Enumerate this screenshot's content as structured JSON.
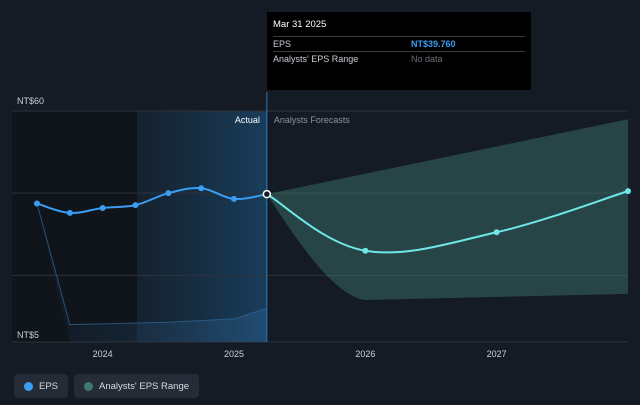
{
  "chart_data": {
    "type": "line",
    "y_axis": {
      "label_top": "NT$60",
      "label_bottom": "NT$5",
      "ylim": [
        5,
        60
      ]
    },
    "x_axis": {
      "ticks": [
        "2024",
        "2025",
        "2026",
        "2027"
      ],
      "tick_values": [
        2024.0,
        2025.0,
        2026.0,
        2027.0
      ],
      "xlim": [
        2023.25,
        2028.0
      ]
    },
    "sections": {
      "actual_label": "Actual",
      "forecast_label": "Analysts Forecasts",
      "split_x": 2025.25
    },
    "series": [
      {
        "name": "EPS",
        "color": "#3a9df2",
        "points": [
          {
            "x": 2023.5,
            "y": 37.5
          },
          {
            "x": 2023.75,
            "y": 35.2
          },
          {
            "x": 2024.0,
            "y": 36.4
          },
          {
            "x": 2024.25,
            "y": 37.1
          },
          {
            "x": 2024.5,
            "y": 40.0
          },
          {
            "x": 2024.75,
            "y": 41.2
          },
          {
            "x": 2025.0,
            "y": 38.6
          },
          {
            "x": 2025.25,
            "y": 39.76
          }
        ]
      },
      {
        "name": "EPS Forecast",
        "color": "#6ee7e7",
        "points": [
          {
            "x": 2025.25,
            "y": 39.76
          },
          {
            "x": 2026.0,
            "y": 26.0
          },
          {
            "x": 2027.0,
            "y": 30.5
          },
          {
            "x": 2028.0,
            "y": 40.5
          }
        ]
      }
    ],
    "range": {
      "name": "Analysts' EPS Range",
      "color": "#3e7a72",
      "upper": [
        {
          "x": 2025.25,
          "y": 39.76
        },
        {
          "x": 2028.0,
          "y": 58.0
        }
      ],
      "lower": [
        {
          "x": 2025.25,
          "y": 39.76
        },
        {
          "x": 2026.0,
          "y": 14.0
        },
        {
          "x": 2028.0,
          "y": 15.5
        }
      ],
      "history_lower": [
        {
          "x": 2023.5,
          "y": 37.5
        },
        {
          "x": 2023.75,
          "y": 8.0
        },
        {
          "x": 2024.0,
          "y": 8.2
        },
        {
          "x": 2024.5,
          "y": 8.6
        },
        {
          "x": 2025.0,
          "y": 9.4
        },
        {
          "x": 2025.25,
          "y": 12.0
        }
      ]
    }
  },
  "tooltip": {
    "date": "Mar 31 2025",
    "rows": [
      {
        "label": "EPS",
        "value": "NT$39.760"
      },
      {
        "label": "Analysts' EPS Range",
        "value": "No data"
      }
    ]
  },
  "legend": [
    {
      "label": "EPS",
      "color": "#3a9df2"
    },
    {
      "label": "Analysts' EPS Range",
      "color": "#3e7a72"
    }
  ]
}
